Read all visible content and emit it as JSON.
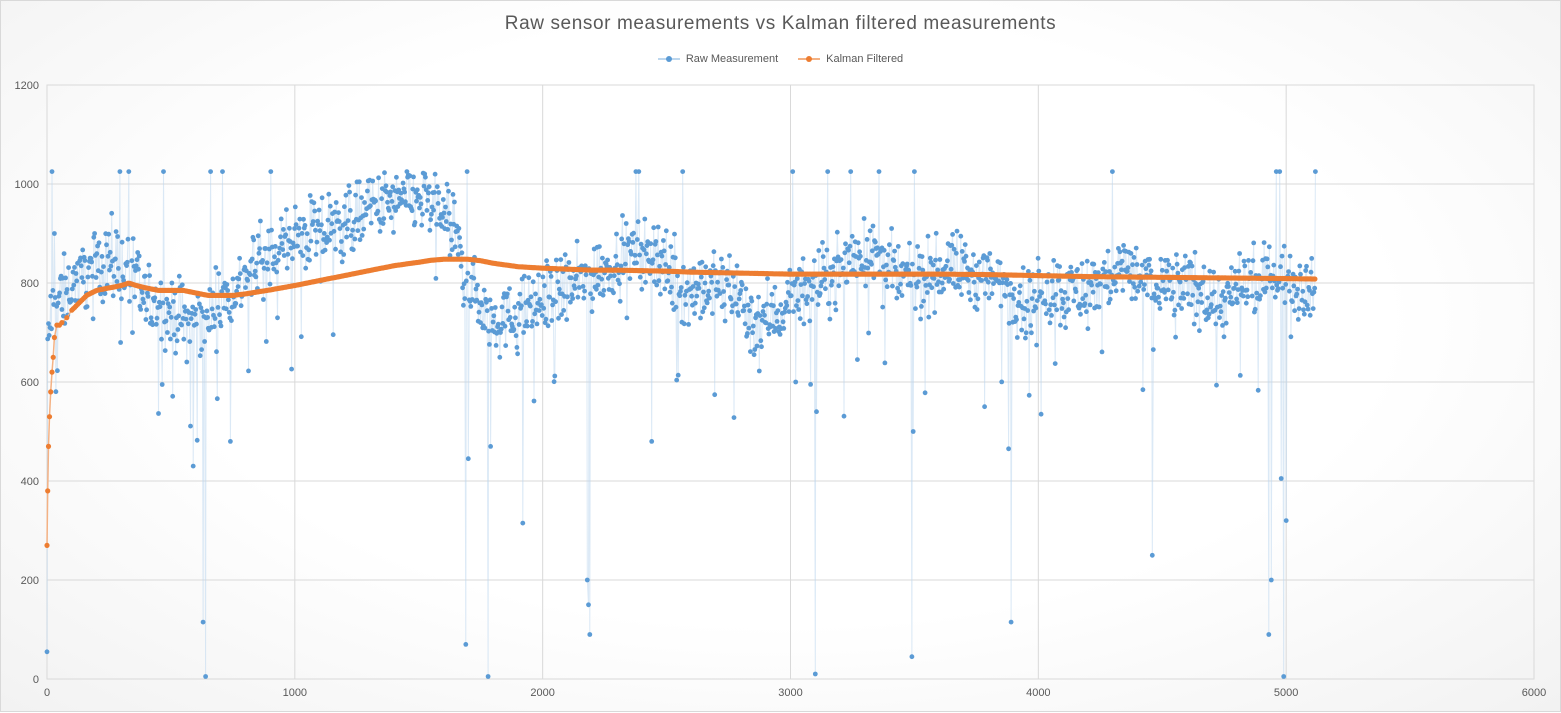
{
  "chart_data": {
    "type": "line",
    "title": "Raw sensor measurements vs Kalman filtered measurements",
    "xlabel": "",
    "ylabel": "",
    "xlim": [
      0,
      6000
    ],
    "ylim": [
      0,
      1200
    ],
    "x_ticks": [
      0,
      1000,
      2000,
      3000,
      4000,
      5000,
      6000
    ],
    "y_ticks": [
      0,
      200,
      400,
      600,
      800,
      1000,
      1200
    ],
    "grid": true,
    "legend_position": "top",
    "colors": {
      "raw": "#5b9bd5",
      "raw_line": "#bdd7ee",
      "kalman": "#ed7d31",
      "grid": "#d9d9d9"
    },
    "series": [
      {
        "name": "Raw Measurement",
        "style": "line-with-markers",
        "x_range": [
          0,
          5120
        ],
        "trend_profile": {
          "x": [
            0,
            10,
            30,
            80,
            150,
            250,
            320,
            400,
            480,
            560,
            640,
            700,
            780,
            860,
            940,
            1000,
            1100,
            1200,
            1300,
            1400,
            1500,
            1580,
            1640,
            1700,
            1780,
            1850,
            1950,
            2050,
            2150,
            2250,
            2350,
            2450,
            2550,
            2650,
            2750,
            2850,
            2950,
            3050,
            3150,
            3250,
            3350,
            3450,
            3550,
            3650,
            3750,
            3850,
            3950,
            4050,
            4150,
            4250,
            4350,
            4450,
            4550,
            4650,
            4750,
            4850,
            4950,
            5050,
            5120
          ],
          "y": [
            650,
            720,
            750,
            790,
            820,
            850,
            830,
            760,
            740,
            720,
            730,
            760,
            800,
            840,
            870,
            890,
            900,
            920,
            950,
            960,
            970,
            950,
            900,
            800,
            740,
            720,
            750,
            780,
            800,
            830,
            860,
            870,
            790,
            780,
            800,
            720,
            740,
            790,
            800,
            860,
            860,
            800,
            810,
            840,
            810,
            800,
            760,
            790,
            780,
            800,
            830,
            800,
            800,
            780,
            760,
            790,
            820,
            800,
            800
          ]
        },
        "notable_points": {
          "x": [
            0,
            20,
            30,
            330,
            470,
            590,
            630,
            640,
            660,
            740,
            1690,
            1700,
            1780,
            1790,
            1920,
            2180,
            2185,
            2190,
            2440,
            3100,
            3105,
            3490,
            3495,
            3500,
            3880,
            3890,
            4460,
            4930,
            4940,
            4960,
            4980,
            4990,
            5000
          ],
          "y": [
            55,
            1025,
            900,
            1025,
            1025,
            430,
            115,
            5,
            1025,
            480,
            70,
            445,
            5,
            470,
            315,
            200,
            150,
            90,
            480,
            10,
            540,
            45,
            500,
            1025,
            465,
            115,
            250,
            90,
            200,
            1025,
            405,
            5,
            320
          ]
        },
        "noise_amplitude": 70
      },
      {
        "name": "Kalman Filtered",
        "style": "line-with-markers",
        "x": [
          0,
          3,
          6,
          10,
          15,
          20,
          25,
          30,
          40,
          50,
          60,
          80,
          100,
          130,
          160,
          200,
          250,
          300,
          330,
          360,
          400,
          450,
          500,
          550,
          600,
          650,
          700,
          750,
          800,
          850,
          900,
          1000,
          1100,
          1200,
          1300,
          1400,
          1500,
          1550,
          1600,
          1650,
          1700,
          1750,
          1800,
          1900,
          2000,
          2100,
          2200,
          2300,
          2400,
          2500,
          2600,
          2800,
          3000,
          3200,
          3400,
          3600,
          3800,
          4000,
          4200,
          4400,
          4600,
          4800,
          5000,
          5120
        ],
        "y": [
          270,
          380,
          470,
          530,
          580,
          620,
          650,
          690,
          715,
          715,
          720,
          730,
          745,
          760,
          775,
          785,
          790,
          795,
          800,
          795,
          790,
          785,
          785,
          785,
          780,
          775,
          775,
          775,
          778,
          782,
          786,
          795,
          805,
          815,
          825,
          835,
          842,
          846,
          848,
          848,
          848,
          845,
          840,
          833,
          830,
          828,
          826,
          826,
          825,
          824,
          822,
          820,
          818,
          818,
          818,
          818,
          817,
          815,
          813,
          812,
          811,
          810,
          809,
          808
        ]
      }
    ]
  }
}
